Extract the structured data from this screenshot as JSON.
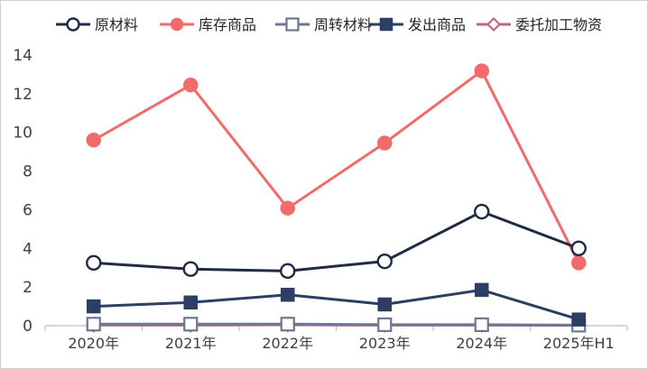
{
  "chart_data": {
    "type": "line",
    "title": "",
    "xlabel": "",
    "ylabel": "",
    "categories": [
      "2020年",
      "2021年",
      "2022年",
      "2023年",
      "2024年",
      "2025年H1"
    ],
    "ylim": [
      0,
      14
    ],
    "yticks": [
      0,
      2,
      4,
      6,
      8,
      10,
      12,
      14
    ],
    "grid": false,
    "legend_position": "top",
    "series": [
      {
        "name": "原材料",
        "color": "#1f2a44",
        "marker": "circle-open",
        "values": [
          3.25,
          2.93,
          2.83,
          3.33,
          5.9,
          4.0
        ]
      },
      {
        "name": "库存商品",
        "color": "#f26b6b",
        "marker": "circle-filled",
        "values": [
          9.6,
          12.45,
          6.08,
          9.45,
          13.18,
          3.25
        ]
      },
      {
        "name": "周转材料",
        "color": "#6b7793",
        "marker": "square-open",
        "values": [
          0.08,
          0.08,
          0.08,
          0.05,
          0.05,
          0.03
        ]
      },
      {
        "name": "发出商品",
        "color": "#2c3e64",
        "marker": "square-filled",
        "values": [
          1.0,
          1.2,
          1.6,
          1.1,
          1.85,
          0.32
        ]
      },
      {
        "name": "委托加工物资",
        "color": "#c2648a",
        "marker": "diamond-open",
        "values": [
          0.03,
          0.03,
          0.05,
          0.03,
          0.03,
          0.02
        ]
      }
    ]
  }
}
